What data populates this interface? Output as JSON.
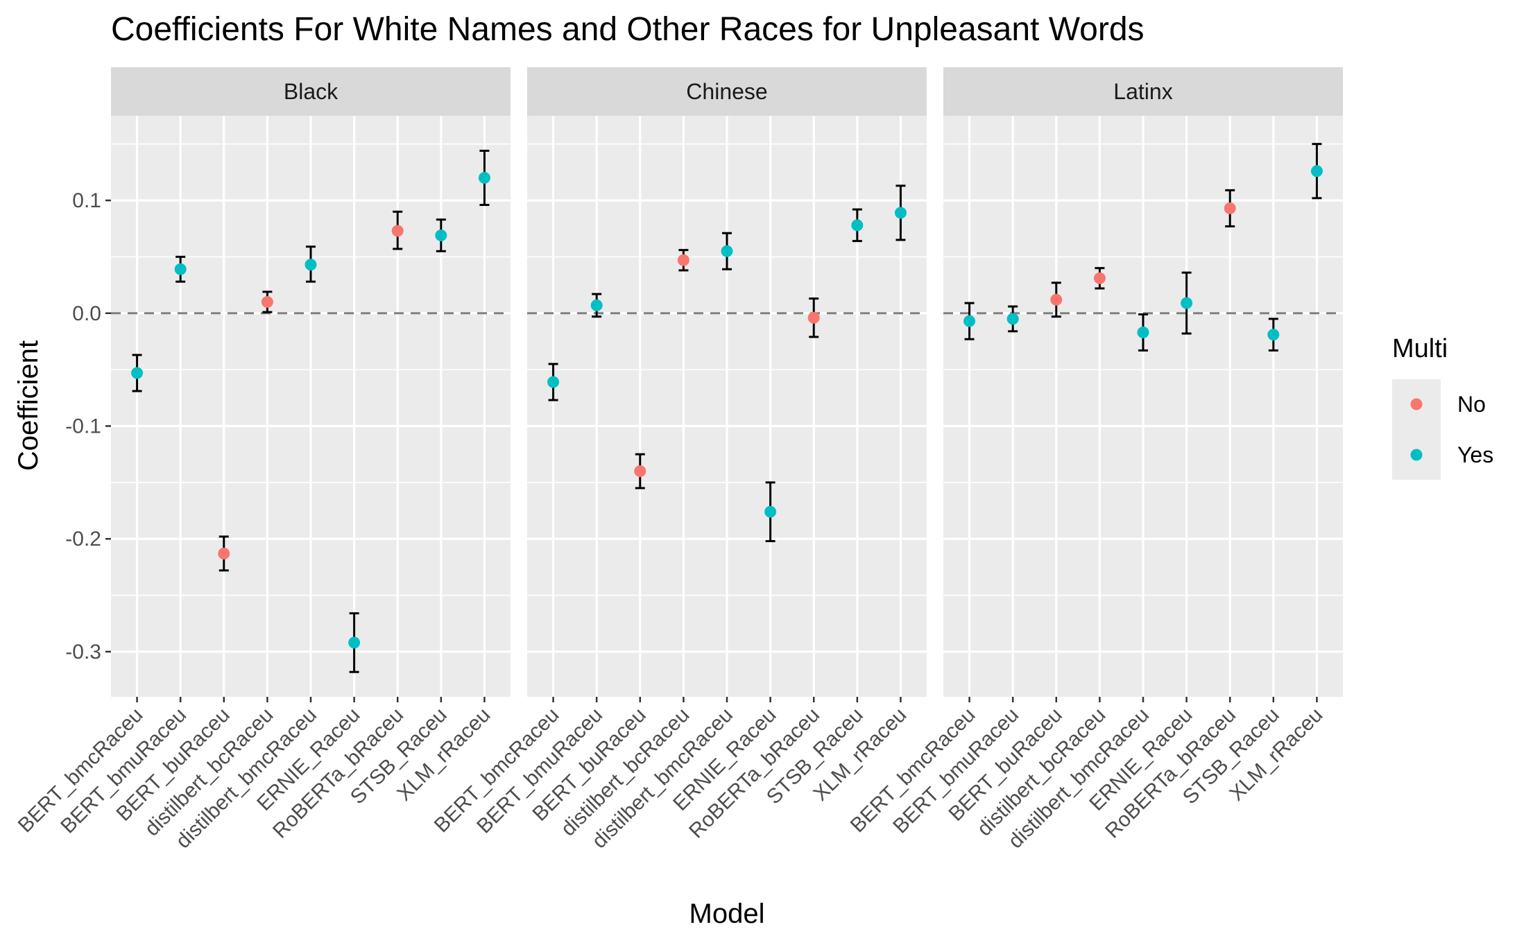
{
  "chart_data": {
    "type": "scatter",
    "title": "Coefficients For White Names and Other Races for Unpleasant Words",
    "xlabel": "Model",
    "ylabel": "Coefficient",
    "ylim": [
      -0.34,
      0.175
    ],
    "yticks": [
      0.1,
      0.0,
      -0.1,
      -0.2,
      -0.3
    ],
    "ytick_labels": [
      "0.1",
      "0.0",
      "-0.1",
      "-0.2",
      "-0.3"
    ],
    "reference_line": 0.0,
    "grid": true,
    "categories": [
      "BERT_bmcRaceu",
      "BERT_bmuRaceu",
      "BERT_buRaceu",
      "distilbert_bcRaceu",
      "distilbert_bmcRaceu",
      "ERNIE_Raceu",
      "RoBERTa_bRaceu",
      "STSB_Raceu",
      "XLM_rRaceu"
    ],
    "multi": [
      "Yes",
      "Yes",
      "No",
      "No",
      "Yes",
      "Yes",
      "No",
      "Yes",
      "Yes"
    ],
    "legend": {
      "title": "Multi",
      "position": "right",
      "entries": [
        {
          "label": "No",
          "color": "#F8766D"
        },
        {
          "label": "Yes",
          "color": "#00BFC4"
        }
      ]
    },
    "panels": [
      {
        "label": "Black",
        "values": [
          -0.053,
          0.039,
          -0.213,
          0.01,
          0.043,
          -0.292,
          0.073,
          0.069,
          0.12
        ],
        "lower": [
          -0.069,
          0.028,
          -0.228,
          0.001,
          0.028,
          -0.318,
          0.057,
          0.055,
          0.096
        ],
        "upper": [
          -0.037,
          0.05,
          -0.198,
          0.019,
          0.059,
          -0.266,
          0.09,
          0.083,
          0.144
        ]
      },
      {
        "label": "Chinese",
        "values": [
          -0.061,
          0.007,
          -0.14,
          0.047,
          0.055,
          -0.176,
          -0.004,
          0.078,
          0.089
        ],
        "lower": [
          -0.077,
          -0.003,
          -0.155,
          0.038,
          0.039,
          -0.202,
          -0.021,
          0.064,
          0.065
        ],
        "upper": [
          -0.045,
          0.017,
          -0.125,
          0.056,
          0.071,
          -0.15,
          0.013,
          0.092,
          0.113
        ]
      },
      {
        "label": "Latinx",
        "values": [
          -0.007,
          -0.005,
          0.012,
          0.031,
          -0.017,
          0.009,
          0.093,
          -0.019,
          0.126
        ],
        "lower": [
          -0.023,
          -0.016,
          -0.003,
          0.022,
          -0.033,
          -0.018,
          0.077,
          -0.033,
          0.102
        ],
        "upper": [
          0.009,
          0.006,
          0.027,
          0.04,
          -0.001,
          0.036,
          0.109,
          -0.005,
          0.15
        ]
      }
    ]
  }
}
